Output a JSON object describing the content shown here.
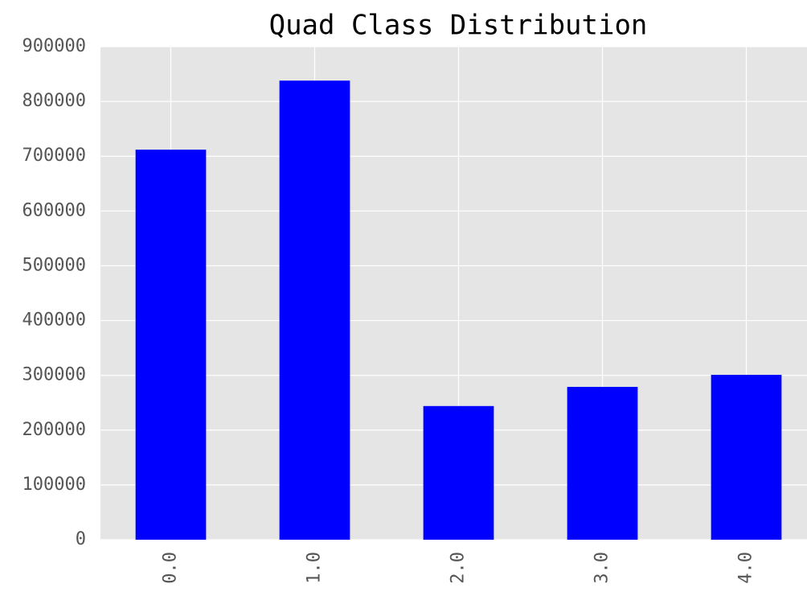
{
  "chart_data": {
    "type": "bar",
    "title": "Quad Class Distribution",
    "categories": [
      "0.0",
      "1.0",
      "2.0",
      "3.0",
      "4.0"
    ],
    "values": [
      712000,
      838000,
      244000,
      279000,
      301000
    ],
    "color": "#0000ff",
    "ylim": [
      0,
      900000
    ],
    "yticks": [
      0,
      100000,
      200000,
      300000,
      400000,
      500000,
      600000,
      700000,
      800000,
      900000
    ],
    "grid": true
  }
}
